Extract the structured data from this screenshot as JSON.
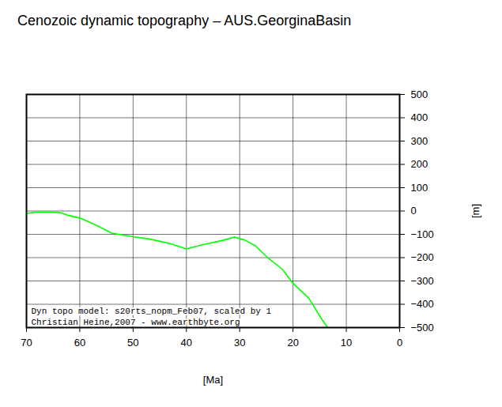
{
  "chart_data": {
    "type": "line",
    "title": "Cenozoic dynamic topography – AUS.GeorginaBasin",
    "x_label": "[Ma]",
    "y_label": "[m]",
    "x": [
      70,
      68,
      65,
      63.5,
      62,
      60,
      57,
      54,
      50,
      47,
      43,
      40,
      37,
      33,
      31,
      29,
      27,
      25,
      22,
      20,
      17,
      15,
      13.5
    ],
    "values": [
      -10,
      -5,
      -5,
      -8,
      -20,
      -30,
      -60,
      -95,
      -110,
      -120,
      -140,
      -163,
      -145,
      -125,
      -112,
      -125,
      -150,
      -195,
      -250,
      -310,
      -375,
      -450,
      -500
    ],
    "color": "#00ff00",
    "xlim": [
      70,
      0
    ],
    "ylim": [
      -500,
      500
    ],
    "xticks": [
      70,
      60,
      50,
      40,
      30,
      20,
      10,
      0
    ],
    "yticks": [
      -500,
      -400,
      -300,
      -200,
      -100,
      0,
      100,
      200,
      300,
      400,
      500
    ],
    "grid": true,
    "annotations": [
      "Dyn topo model: s20rts_nopm_Feb07, scaled by 1",
      "Christian Heine,2007 - www.earthbyte.org"
    ]
  }
}
